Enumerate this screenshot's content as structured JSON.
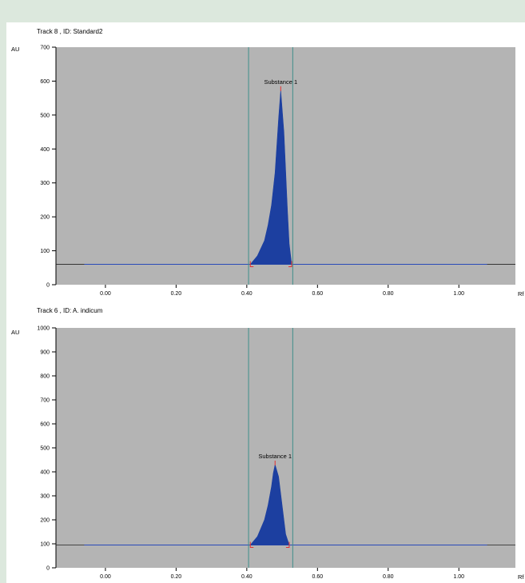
{
  "colors": {
    "background": "#dce8dd",
    "panel": "#ffffff",
    "plot_area": "#b4b4b4",
    "peak_fill": "#1c3fa0",
    "baseline": "#2a4ab8",
    "window_lines": "#3f8f8a",
    "peak_markers": "#e23030"
  },
  "chart_data": [
    {
      "type": "area",
      "title": "Track  8 , ID: Standard2",
      "ylabel": "AU",
      "xlabel": "Rf",
      "xlim": [
        -0.14,
        1.16
      ],
      "ylim": [
        0,
        700
      ],
      "xticks": [
        0.0,
        0.2,
        0.4,
        0.6,
        0.8,
        1.0
      ],
      "xtick_labels": [
        "0.00",
        "0.20",
        "0.40",
        "0.60",
        "0.80",
        "1.00"
      ],
      "yticks": [
        0,
        100,
        200,
        300,
        400,
        500,
        600,
        700
      ],
      "ytick_labels": [
        "0",
        "100",
        "200",
        "300",
        "400",
        "500",
        "600",
        "700"
      ],
      "grid": false,
      "baseline_au": 60,
      "baseline_x_range": [
        -0.06,
        1.08
      ],
      "window_rf": [
        0.405,
        0.53
      ],
      "peak": {
        "label": "Substance 1",
        "start_rf": 0.41,
        "apex_rf": 0.496,
        "end_rf": 0.527,
        "height_au": 573
      },
      "x": [
        0.41,
        0.43,
        0.45,
        0.46,
        0.47,
        0.48,
        0.49,
        0.496,
        0.505,
        0.515,
        0.52,
        0.527
      ],
      "y": [
        60,
        85,
        130,
        175,
        235,
        330,
        490,
        573,
        450,
        220,
        120,
        60
      ]
    },
    {
      "type": "area",
      "title": "Track  6 , ID: A. indicum",
      "ylabel": "AU",
      "xlabel": "Rf",
      "xlim": [
        -0.14,
        1.16
      ],
      "ylim": [
        0,
        1000
      ],
      "xticks": [
        0.0,
        0.2,
        0.4,
        0.6,
        0.8,
        1.0
      ],
      "xtick_labels": [
        "0.00",
        "0.20",
        "0.40",
        "0.60",
        "0.80",
        "1.00"
      ],
      "yticks": [
        0,
        100,
        200,
        300,
        400,
        500,
        600,
        700,
        800,
        900,
        1000
      ],
      "ytick_labels": [
        "0",
        "100",
        "200",
        "300",
        "400",
        "500",
        "600",
        "700",
        "800",
        "900",
        "1000"
      ],
      "grid": false,
      "baseline_au": 95,
      "baseline_x_range": [
        -0.06,
        1.08
      ],
      "window_rf": [
        0.405,
        0.53
      ],
      "peak": {
        "label": "Substance 1",
        "start_rf": 0.41,
        "apex_rf": 0.48,
        "end_rf": 0.52,
        "height_au": 430
      },
      "x": [
        0.41,
        0.43,
        0.45,
        0.46,
        0.47,
        0.475,
        0.48,
        0.49,
        0.5,
        0.51,
        0.52
      ],
      "y": [
        95,
        130,
        200,
        260,
        340,
        395,
        430,
        380,
        260,
        140,
        95
      ]
    }
  ]
}
